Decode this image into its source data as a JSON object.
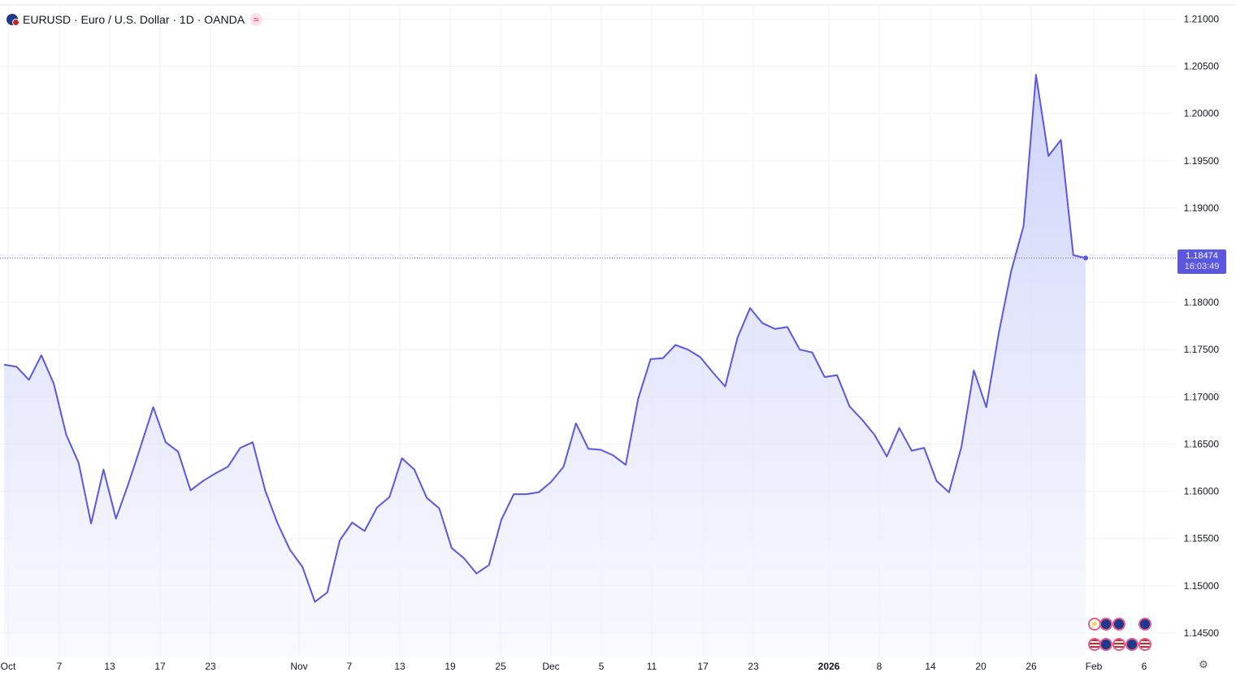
{
  "header": {
    "symbol_text": "EURUSD · Euro / U.S. Dollar · 1D · OANDA",
    "symbol_icon": "eur-usd-flag-icon",
    "indicator_icon": "wave-icon",
    "indicator_glyph": "≈"
  },
  "price_tag": {
    "price": "1.18474",
    "countdown": "16:03:49"
  },
  "colors": {
    "line": "#5b57e0",
    "fill_top": "#c8cdf8",
    "fill_bottom": "#f4f5fe",
    "grid": "#f0f2f5",
    "axis_text": "#131722"
  },
  "chart_data": {
    "type": "area",
    "title": "EURUSD · Euro / U.S. Dollar · 1D · OANDA",
    "xlabel": "",
    "ylabel": "",
    "ylim": [
      1.1425,
      1.2115
    ],
    "grid": true,
    "legend": "top-left",
    "x_ticks": [
      "Oct",
      "7",
      "13",
      "17",
      "23",
      "Nov",
      "7",
      "13",
      "19",
      "25",
      "Dec",
      "5",
      "11",
      "17",
      "23",
      "2026",
      "8",
      "14",
      "20",
      "26",
      "Feb",
      "6"
    ],
    "y_ticks": [
      "1.21000",
      "1.20500",
      "1.20000",
      "1.19500",
      "1.19000",
      "1.18500",
      "1.18000",
      "1.17500",
      "1.17000",
      "1.16500",
      "1.16000",
      "1.15500",
      "1.15000",
      "1.14500"
    ],
    "series": [
      {
        "name": "EURUSD",
        "values": [
          1.1734,
          1.1732,
          1.1718,
          1.1744,
          1.1714,
          1.166,
          1.163,
          1.1566,
          1.1623,
          1.1571,
          1.1608,
          1.1648,
          1.1689,
          1.1652,
          1.1642,
          1.1601,
          1.1611,
          1.1619,
          1.1626,
          1.1646,
          1.1652,
          1.1601,
          1.1566,
          1.1538,
          1.152,
          1.1483,
          1.1493,
          1.1548,
          1.1567,
          1.1558,
          1.1583,
          1.1594,
          1.1635,
          1.1623,
          1.1593,
          1.1582,
          1.154,
          1.1529,
          1.1513,
          1.1522,
          1.157,
          1.1597,
          1.1597,
          1.1599,
          1.161,
          1.1626,
          1.1672,
          1.1645,
          1.1644,
          1.1638,
          1.1628,
          1.1698,
          1.174,
          1.1741,
          1.1755,
          1.175,
          1.1742,
          1.1726,
          1.1711,
          1.1763,
          1.1794,
          1.1778,
          1.1772,
          1.1774,
          1.175,
          1.1747,
          1.1721,
          1.1723,
          1.169,
          1.1676,
          1.166,
          1.1637,
          1.1667,
          1.1643,
          1.1646,
          1.1611,
          1.1599,
          1.1647,
          1.1728,
          1.1689,
          1.1767,
          1.1833,
          1.1881,
          1.2041,
          1.1955,
          1.1972,
          1.185,
          1.1847
        ]
      }
    ]
  }
}
